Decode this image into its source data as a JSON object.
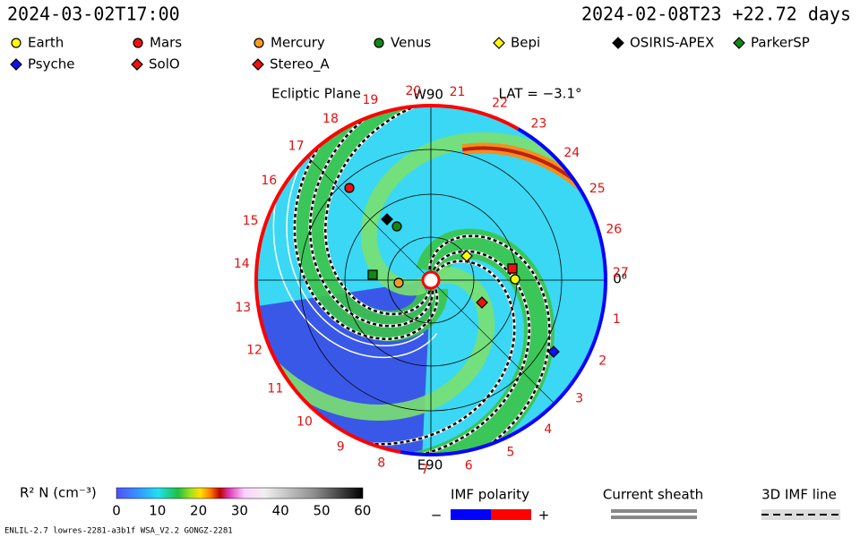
{
  "header": {
    "left": "2024-03-02T17:00",
    "right": "2024-02-08T23 +22.72 days"
  },
  "legend": [
    {
      "label": "Earth",
      "color": "#ffff00",
      "shape": "circle"
    },
    {
      "label": "Mars",
      "color": "#ee1111",
      "shape": "circle"
    },
    {
      "label": "Mercury",
      "color": "#f59a22",
      "shape": "circle"
    },
    {
      "label": "Venus",
      "color": "#118811",
      "shape": "circle"
    },
    {
      "label": "Bepi",
      "color": "#ffff00",
      "shape": "diamond"
    },
    {
      "label": "OSIRIS-APEX",
      "color": "#000000",
      "shape": "diamond"
    },
    {
      "label": "ParkerSP",
      "color": "#118811",
      "shape": "diamond"
    },
    {
      "label": "Psyche",
      "color": "#1111ee",
      "shape": "diamond"
    },
    {
      "label": "SolO",
      "color": "#ee1111",
      "shape": "diamond"
    },
    {
      "label": "Stereo_A",
      "color": "#ee1111",
      "shape": "diamond"
    }
  ],
  "plot": {
    "title": "Ecliptic Plane",
    "top": "W90",
    "latitude": "LAT = −3.1°",
    "bottom": "E90",
    "right": "0⁰",
    "ring_labels": [
      "1",
      "2",
      "3",
      "4",
      "5",
      "6",
      "7",
      "8",
      "9",
      "10",
      "11",
      "12",
      "13",
      "14",
      "15",
      "16",
      "17",
      "18",
      "19",
      "20",
      "21",
      "22",
      "23",
      "24",
      "25",
      "26",
      "27"
    ]
  },
  "colorbar": {
    "label": "R² N (cm⁻³)",
    "ticks": [
      "0",
      "10",
      "20",
      "30",
      "40",
      "50",
      "60"
    ]
  },
  "imf": {
    "title": "IMF polarity",
    "minus": "−",
    "plus": "+"
  },
  "sheath": "Current sheath",
  "line3d": "3D IMF line",
  "footer": "ENLIL-2.7 lowres-2281-a3b1f WSA_V2.2 GONGZ-2281"
}
